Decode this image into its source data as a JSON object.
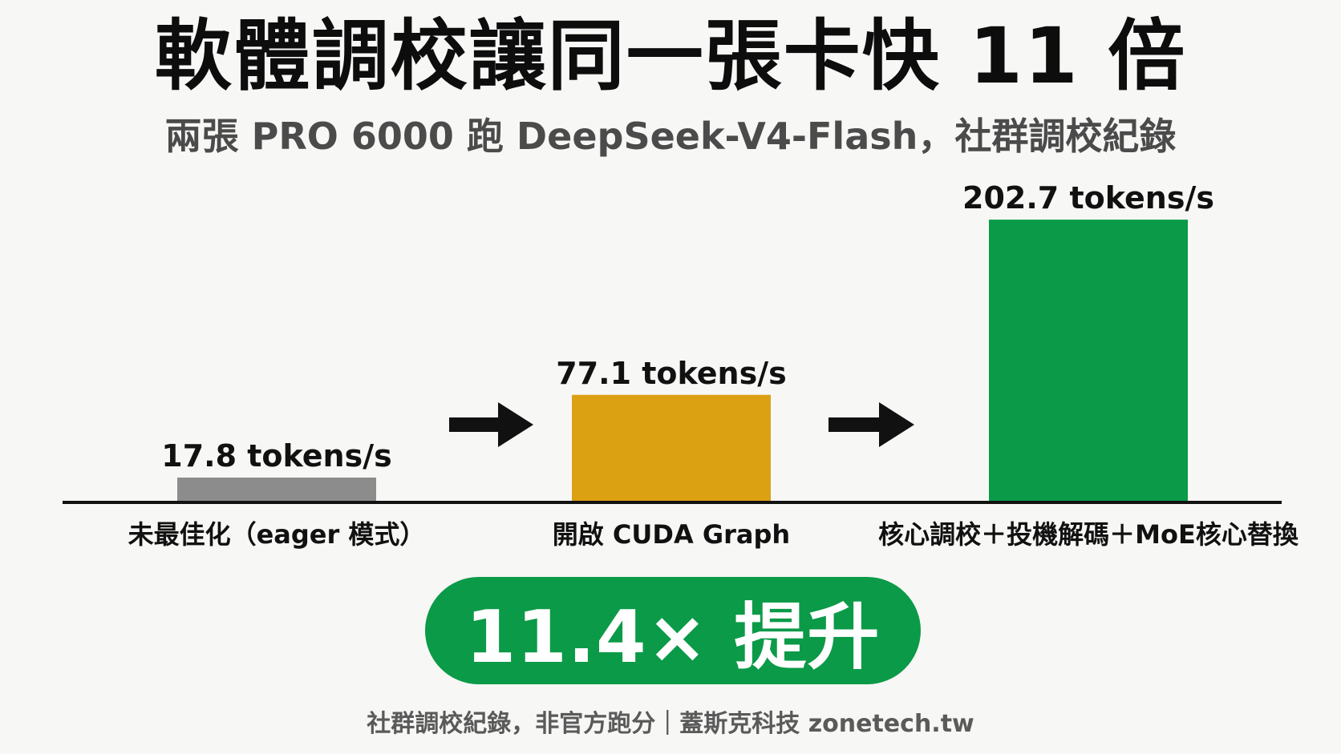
{
  "title": "軟體調校讓同一張卡快 11 倍",
  "subtitle": "兩張 PRO 6000 跑 DeepSeek-V4-Flash，社群調校紀錄",
  "chart_data": {
    "type": "bar",
    "categories": [
      "未最佳化（eager 模式）",
      "開啟 CUDA Graph",
      "核心調校＋投機解碼＋MoE核心替換"
    ],
    "values": [
      17.8,
      77.1,
      202.7
    ],
    "value_labels": [
      "17.8 tokens/s",
      "77.1 tokens/s",
      "202.7 tokens/s"
    ],
    "colors": [
      "#8c8c8c",
      "#dca013",
      "#0b9a48"
    ],
    "ylim": [
      0,
      220
    ],
    "grid": false,
    "arrows_between_bars": true
  },
  "badge": {
    "text": "11.4× 提升",
    "color": "#0b9a48"
  },
  "footer": "社群調校紀錄，非官方跑分｜蓋斯克科技 zonetech.tw"
}
